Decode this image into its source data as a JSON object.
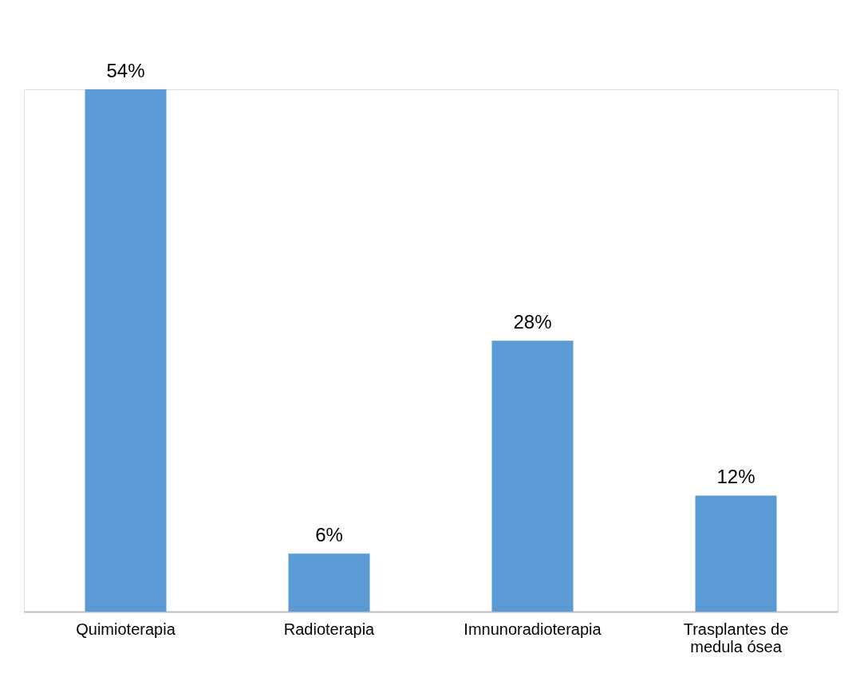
{
  "chart_data": {
    "type": "bar",
    "categories": [
      "Quimioterapia",
      "Radioterapia",
      "Imnunoradioterapia",
      "Trasplantes de medula ósea"
    ],
    "values": [
      54,
      6,
      28,
      12
    ],
    "value_labels": [
      "54%",
      "6%",
      "28%",
      "12%"
    ],
    "color": "#5b9bd5",
    "grid": false,
    "tick_labels": "x"
  }
}
